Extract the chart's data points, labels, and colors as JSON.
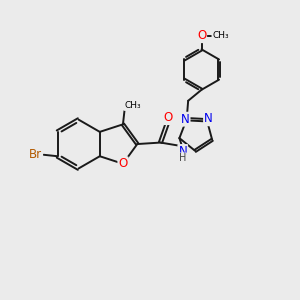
{
  "bg_color": "#ebebeb",
  "bond_color": "#1a1a1a",
  "bond_width": 1.4,
  "dbo": 0.06,
  "atom_colors": {
    "O": "#ff0000",
    "N": "#0000ee",
    "Br": "#b35a00",
    "C": "#1a1a1a",
    "H": "#444444"
  },
  "fs": 8.5,
  "fss": 7.0
}
